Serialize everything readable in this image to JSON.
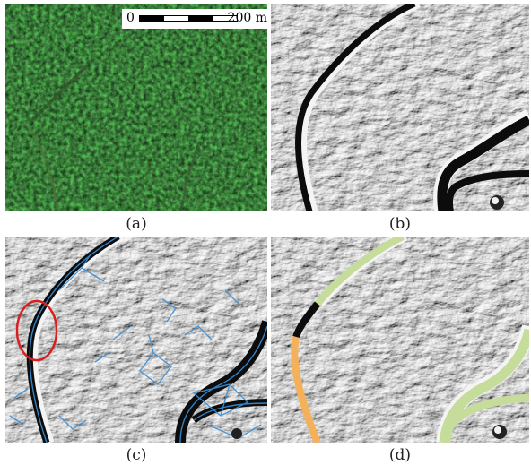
{
  "figure": {
    "panels": [
      {
        "id": "a",
        "caption": "(a)",
        "content": "aerial-forest-photo"
      },
      {
        "id": "b",
        "caption": "(b)",
        "content": "terrain-hillshade"
      },
      {
        "id": "c",
        "caption": "(c)",
        "content": "hillshade-with-detected-network"
      },
      {
        "id": "d",
        "caption": "(d)",
        "content": "hillshade-with-classified-road"
      }
    ],
    "scalebar": {
      "start_label": "0",
      "end_label": "200 m"
    },
    "colors": {
      "forest_dark": "#17361a",
      "forest_mid": "#2a5a25",
      "hillshade_bg": "#bdbdbd",
      "road_dark": "#111111",
      "network_blue": "#3a8fd6",
      "highlight_red": "#d42020",
      "segment_green": "#c5dc9a",
      "segment_orange": "#f4b15a"
    }
  }
}
